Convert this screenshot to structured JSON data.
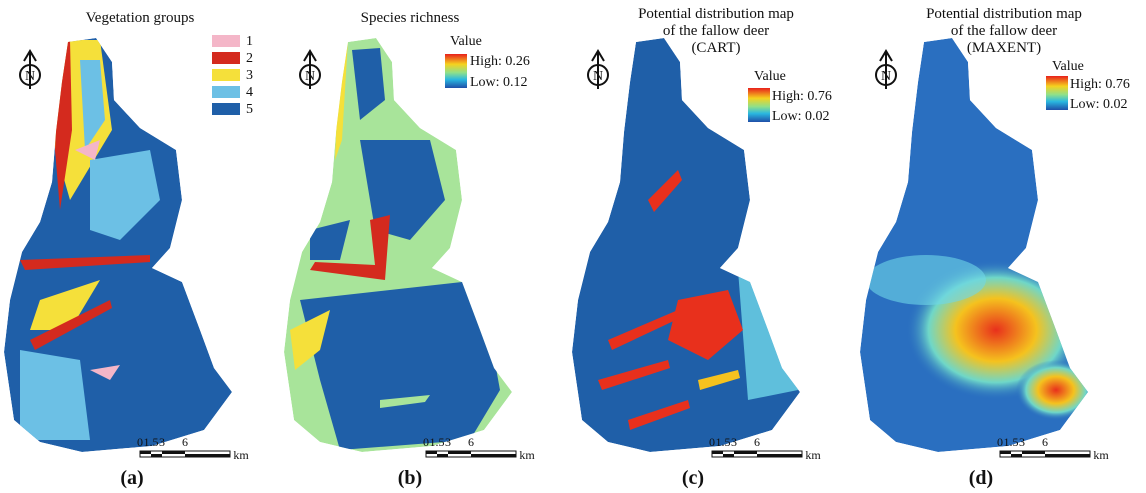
{
  "panels": [
    {
      "title": [
        "Vegetation groups"
      ],
      "legend": {
        "items": [
          "1",
          "2",
          "3",
          "4",
          "5"
        ]
      },
      "north": "N",
      "scale": [
        "0",
        "1.5",
        "3",
        "6",
        "km"
      ],
      "label": "(a)"
    },
    {
      "title": [
        "Species richness"
      ],
      "legend": {
        "heading": "Value",
        "high": "High: 0.26",
        "low": "Low: 0.12"
      },
      "north": "N",
      "scale": [
        "0",
        "1.5",
        "3",
        "6",
        "km"
      ],
      "label": "(b)"
    },
    {
      "title": [
        "Potential distribution map",
        "of the fallow deer",
        "(CART)"
      ],
      "legend": {
        "heading": "Value",
        "high": "High: 0.76",
        "low": "Low: 0.02"
      },
      "north": "N",
      "scale": [
        "0",
        "1.5",
        "3",
        "6",
        "km"
      ],
      "label": "(c)"
    },
    {
      "title": [
        "Potential distribution map",
        "of the fallow deer",
        "(MAXENT)"
      ],
      "legend": {
        "heading": "Value",
        "high": "High: 0.76",
        "low": "Low: 0.02"
      },
      "north": "N",
      "scale": [
        "0",
        "1.5",
        "3",
        "6",
        "km"
      ],
      "label": "(d)"
    }
  ]
}
